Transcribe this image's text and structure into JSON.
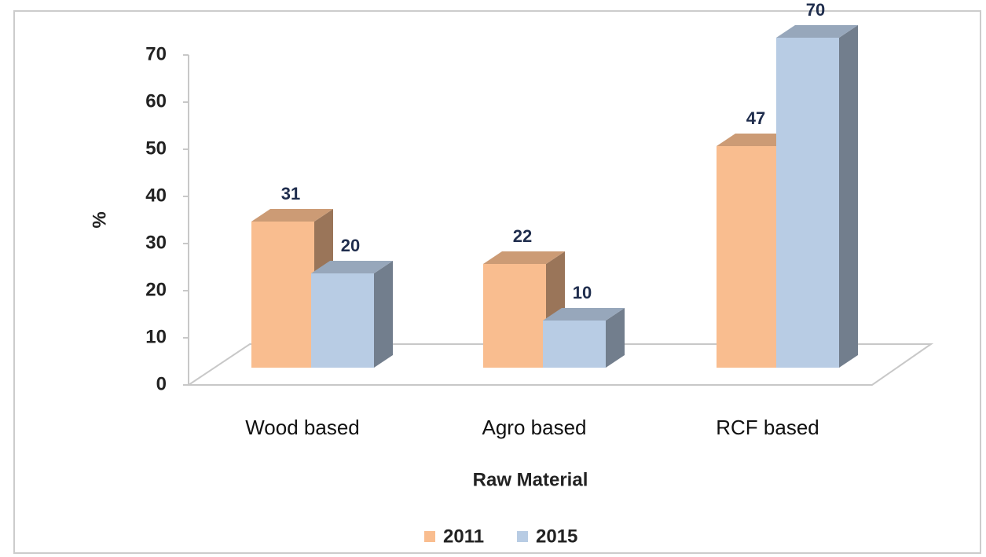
{
  "chart_data": {
    "type": "bar3d",
    "x_label": "Raw Material",
    "y_label": "%",
    "categories": [
      "Wood based",
      "Agro based",
      "RCF based"
    ],
    "series": [
      {
        "name": "2011",
        "color": "#f9bd8f",
        "values": [
          31,
          22,
          47
        ]
      },
      {
        "name": "2015",
        "color": "#b8cce4",
        "values": [
          20,
          10,
          70
        ]
      }
    ],
    "ylim": [
      0,
      70
    ],
    "yticks": [
      0,
      10,
      20,
      30,
      40,
      50,
      60,
      70
    ],
    "legend": "bottom"
  }
}
